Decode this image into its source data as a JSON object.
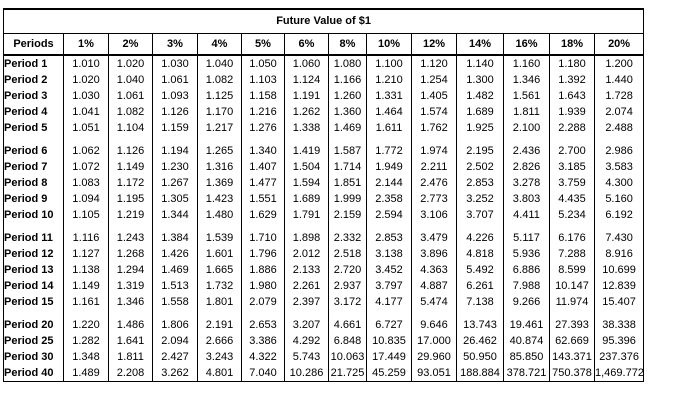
{
  "title": "Future Value of $1",
  "colors": {
    "border": "#000000",
    "text": "#000000",
    "background": "#ffffff"
  },
  "table": {
    "header": [
      "Periods",
      "1%",
      "2%",
      "3%",
      "4%",
      "5%",
      "6%",
      "8%",
      "10%",
      "12%",
      "14%",
      "16%",
      "18%",
      "20%"
    ],
    "groups": [
      {
        "rows": [
          {
            "label": "Period 1",
            "values": [
              "1.010",
              "1.020",
              "1.030",
              "1.040",
              "1.050",
              "1.060",
              "1.080",
              "1.100",
              "1.120",
              "1.140",
              "1.160",
              "1.180",
              "1.200"
            ]
          },
          {
            "label": "Period 2",
            "values": [
              "1.020",
              "1.040",
              "1.061",
              "1.082",
              "1.103",
              "1.124",
              "1.166",
              "1.210",
              "1.254",
              "1.300",
              "1.346",
              "1.392",
              "1.440"
            ]
          },
          {
            "label": "Period 3",
            "values": [
              "1.030",
              "1.061",
              "1.093",
              "1.125",
              "1.158",
              "1.191",
              "1.260",
              "1.331",
              "1.405",
              "1.482",
              "1.561",
              "1.643",
              "1.728"
            ]
          },
          {
            "label": "Period 4",
            "values": [
              "1.041",
              "1.082",
              "1.126",
              "1.170",
              "1.216",
              "1.262",
              "1.360",
              "1.464",
              "1.574",
              "1.689",
              "1.811",
              "1.939",
              "2.074"
            ]
          },
          {
            "label": "Period 5",
            "values": [
              "1.051",
              "1.104",
              "1.159",
              "1.217",
              "1.276",
              "1.338",
              "1.469",
              "1.611",
              "1.762",
              "1.925",
              "2.100",
              "2.288",
              "2.488"
            ]
          }
        ]
      },
      {
        "rows": [
          {
            "label": "Period 6",
            "values": [
              "1.062",
              "1.126",
              "1.194",
              "1.265",
              "1.340",
              "1.419",
              "1.587",
              "1.772",
              "1.974",
              "2.195",
              "2.436",
              "2.700",
              "2.986"
            ]
          },
          {
            "label": "Period 7",
            "values": [
              "1.072",
              "1.149",
              "1.230",
              "1.316",
              "1.407",
              "1.504",
              "1.714",
              "1.949",
              "2.211",
              "2.502",
              "2.826",
              "3.185",
              "3.583"
            ]
          },
          {
            "label": "Period 8",
            "values": [
              "1.083",
              "1.172",
              "1.267",
              "1.369",
              "1.477",
              "1.594",
              "1.851",
              "2.144",
              "2.476",
              "2.853",
              "3.278",
              "3.759",
              "4.300"
            ]
          },
          {
            "label": "Period 9",
            "values": [
              "1.094",
              "1.195",
              "1.305",
              "1.423",
              "1.551",
              "1.689",
              "1.999",
              "2.358",
              "2.773",
              "3.252",
              "3.803",
              "4.435",
              "5.160"
            ]
          },
          {
            "label": "Period 10",
            "values": [
              "1.105",
              "1.219",
              "1.344",
              "1.480",
              "1.629",
              "1.791",
              "2.159",
              "2.594",
              "3.106",
              "3.707",
              "4.411",
              "5.234",
              "6.192"
            ]
          }
        ]
      },
      {
        "rows": [
          {
            "label": "Period 11",
            "values": [
              "1.116",
              "1.243",
              "1.384",
              "1.539",
              "1.710",
              "1.898",
              "2.332",
              "2.853",
              "3.479",
              "4.226",
              "5.117",
              "6.176",
              "7.430"
            ]
          },
          {
            "label": "Period 12",
            "values": [
              "1.127",
              "1.268",
              "1.426",
              "1.601",
              "1.796",
              "2.012",
              "2.518",
              "3.138",
              "3.896",
              "4.818",
              "5.936",
              "7.288",
              "8.916"
            ]
          },
          {
            "label": "Period 13",
            "values": [
              "1.138",
              "1.294",
              "1.469",
              "1.665",
              "1.886",
              "2.133",
              "2.720",
              "3.452",
              "4.363",
              "5.492",
              "6.886",
              "8.599",
              "10.699"
            ]
          },
          {
            "label": "Period 14",
            "values": [
              "1.149",
              "1.319",
              "1.513",
              "1.732",
              "1.980",
              "2.261",
              "2.937",
              "3.797",
              "4.887",
              "6.261",
              "7.988",
              "10.147",
              "12.839"
            ]
          },
          {
            "label": "Period 15",
            "values": [
              "1.161",
              "1.346",
              "1.558",
              "1.801",
              "2.079",
              "2.397",
              "3.172",
              "4.177",
              "5.474",
              "7.138",
              "9.266",
              "11.974",
              "15.407"
            ]
          }
        ]
      },
      {
        "rows": [
          {
            "label": "Period 20",
            "values": [
              "1.220",
              "1.486",
              "1.806",
              "2.191",
              "2.653",
              "3.207",
              "4.661",
              "6.727",
              "9.646",
              "13.743",
              "19.461",
              "27.393",
              "38.338"
            ]
          },
          {
            "label": "Period 25",
            "values": [
              "1.282",
              "1.641",
              "2.094",
              "2.666",
              "3.386",
              "4.292",
              "6.848",
              "10.835",
              "17.000",
              "26.462",
              "40.874",
              "62.669",
              "95.396"
            ]
          },
          {
            "label": "Period 30",
            "values": [
              "1.348",
              "1.811",
              "2.427",
              "3.243",
              "4.322",
              "5.743",
              "10.063",
              "17.449",
              "29.960",
              "50.950",
              "85.850",
              "143.371",
              "237.376"
            ]
          },
          {
            "label": "Period 40",
            "values": [
              "1.489",
              "2.208",
              "3.262",
              "4.801",
              "7.040",
              "10.286",
              "21.725",
              "45.259",
              "93.051",
              "188.884",
              "378.721",
              "750.378",
              "1,469.772"
            ]
          }
        ]
      }
    ]
  }
}
